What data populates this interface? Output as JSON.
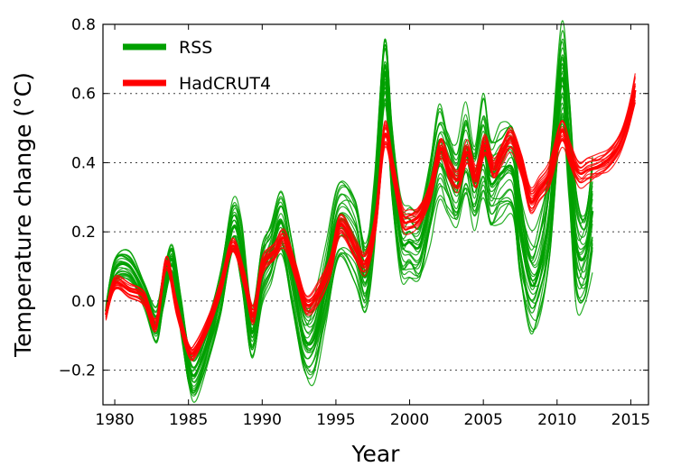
{
  "chart_data": {
    "type": "line",
    "xlabel": "Year",
    "ylabel": "Temperature change (°C)",
    "xlim": [
      1979.2,
      2016.2
    ],
    "ylim": [
      -0.3,
      0.8
    ],
    "xticks": [
      1980,
      1985,
      1990,
      1995,
      2000,
      2005,
      2010,
      2015
    ],
    "yticks": [
      -0.2,
      0.0,
      0.2,
      0.4,
      0.6,
      0.8
    ],
    "ytick_labels": [
      "−0.2",
      "0.0",
      "0.2",
      "0.4",
      "0.6",
      "0.8"
    ],
    "grid": "horizontal dotted",
    "legend_position": "top-left",
    "series": [
      {
        "name": "RSS",
        "color": "#00a000",
        "style": "ensemble of many realizations (band)",
        "x": [
          1979.4,
          1980.0,
          1981.0,
          1982.0,
          1982.8,
          1983.3,
          1983.9,
          1984.5,
          1985.0,
          1985.5,
          1986.5,
          1987.2,
          1988.0,
          1988.6,
          1989.3,
          1990.0,
          1990.6,
          1991.3,
          1992.0,
          1992.8,
          1993.5,
          1994.3,
          1995.2,
          1996.3,
          1997.0,
          1997.6,
          1998.3,
          1998.8,
          1999.4,
          2000.0,
          2000.7,
          2001.4,
          2002.0,
          2002.6,
          2003.2,
          2003.8,
          2004.4,
          2005.0,
          2005.5,
          2006.2,
          2007.0,
          2007.5,
          2008.2,
          2008.8,
          2009.5,
          2010.3,
          2010.8,
          2011.3,
          2011.9,
          2012.4
        ],
        "mean": [
          -0.03,
          0.09,
          0.1,
          0.02,
          -0.07,
          0.03,
          0.12,
          -0.05,
          -0.18,
          -0.21,
          -0.09,
          0.03,
          0.21,
          0.14,
          -0.09,
          0.08,
          0.14,
          0.23,
          0.08,
          -0.1,
          -0.11,
          0.04,
          0.23,
          0.18,
          0.07,
          0.25,
          0.66,
          0.4,
          0.18,
          0.17,
          0.16,
          0.3,
          0.43,
          0.38,
          0.33,
          0.43,
          0.34,
          0.44,
          0.34,
          0.37,
          0.38,
          0.2,
          0.05,
          0.09,
          0.26,
          0.64,
          0.45,
          0.16,
          0.13,
          0.26
        ],
        "spread": [
          0.02,
          0.04,
          0.04,
          0.04,
          0.05,
          0.05,
          0.04,
          0.05,
          0.06,
          0.07,
          0.06,
          0.06,
          0.07,
          0.08,
          0.07,
          0.08,
          0.08,
          0.09,
          0.1,
          0.1,
          0.11,
          0.11,
          0.11,
          0.12,
          0.09,
          0.1,
          0.1,
          0.11,
          0.11,
          0.1,
          0.1,
          0.12,
          0.12,
          0.12,
          0.11,
          0.12,
          0.12,
          0.14,
          0.13,
          0.13,
          0.13,
          0.14,
          0.14,
          0.13,
          0.13,
          0.14,
          0.14,
          0.15,
          0.14,
          0.15
        ]
      },
      {
        "name": "HadCRUT4",
        "color": "#ff0000",
        "style": "ensemble of many realizations (band)",
        "x": [
          1979.4,
          1980.0,
          1981.0,
          1982.0,
          1982.8,
          1983.5,
          1984.2,
          1985.0,
          1985.5,
          1986.5,
          1987.2,
          1988.0,
          1988.8,
          1989.4,
          1990.0,
          1990.8,
          1991.5,
          1992.3,
          1993.0,
          1993.8,
          1994.6,
          1995.3,
          1996.3,
          1997.0,
          1997.7,
          1998.3,
          1998.9,
          1999.5,
          2000.0,
          2000.7,
          2001.4,
          2002.1,
          2002.7,
          2003.3,
          2003.9,
          2004.5,
          2005.1,
          2005.7,
          2006.3,
          2006.9,
          2007.6,
          2008.2,
          2008.8,
          2009.5,
          2010.3,
          2010.9,
          2011.5,
          2012.1,
          2012.8,
          2013.5,
          2014.2,
          2014.8,
          2015.3
        ],
        "mean": [
          -0.04,
          0.05,
          0.03,
          0.01,
          -0.07,
          0.11,
          -0.02,
          -0.14,
          -0.14,
          -0.05,
          0.04,
          0.16,
          0.06,
          -0.04,
          0.1,
          0.14,
          0.18,
          0.08,
          -0.01,
          0.02,
          0.1,
          0.22,
          0.15,
          0.11,
          0.23,
          0.48,
          0.37,
          0.24,
          0.23,
          0.25,
          0.32,
          0.44,
          0.38,
          0.35,
          0.43,
          0.36,
          0.45,
          0.38,
          0.43,
          0.47,
          0.39,
          0.29,
          0.32,
          0.37,
          0.49,
          0.42,
          0.37,
          0.38,
          0.39,
          0.41,
          0.45,
          0.52,
          0.61
        ],
        "spread": [
          0.015,
          0.02,
          0.02,
          0.02,
          0.02,
          0.02,
          0.02,
          0.02,
          0.02,
          0.02,
          0.02,
          0.02,
          0.025,
          0.025,
          0.025,
          0.025,
          0.025,
          0.025,
          0.025,
          0.03,
          0.03,
          0.03,
          0.03,
          0.03,
          0.03,
          0.035,
          0.03,
          0.03,
          0.03,
          0.03,
          0.03,
          0.03,
          0.03,
          0.03,
          0.03,
          0.03,
          0.03,
          0.03,
          0.03,
          0.035,
          0.035,
          0.035,
          0.035,
          0.035,
          0.04,
          0.035,
          0.035,
          0.035,
          0.03,
          0.03,
          0.03,
          0.035,
          0.04
        ]
      }
    ]
  }
}
